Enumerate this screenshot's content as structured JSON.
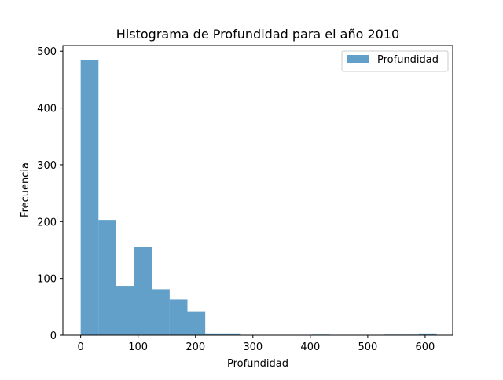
{
  "chart_data": {
    "type": "bar",
    "title": "Histograma de Profundidad para el año 2010",
    "xlabel": "Profundidad",
    "ylabel": "Frecuencia",
    "xlim": [
      -31,
      648
    ],
    "ylim": [
      0,
      510
    ],
    "x_ticks": [
      0,
      100,
      200,
      300,
      400,
      500,
      600
    ],
    "y_ticks": [
      0,
      100,
      200,
      300,
      400,
      500
    ],
    "legend": {
      "position": "top-right",
      "label": "Profundidad"
    },
    "series": [
      {
        "name": "Profundidad",
        "color": "#1f77b4",
        "opacity": 0.7,
        "bins": [
          {
            "x0": 0,
            "x1": 31,
            "count": 484
          },
          {
            "x0": 31,
            "x1": 62,
            "count": 203
          },
          {
            "x0": 62,
            "x1": 93,
            "count": 87
          },
          {
            "x0": 93,
            "x1": 124,
            "count": 155
          },
          {
            "x0": 124,
            "x1": 155,
            "count": 81
          },
          {
            "x0": 155,
            "x1": 186,
            "count": 63
          },
          {
            "x0": 186,
            "x1": 217,
            "count": 42
          },
          {
            "x0": 217,
            "x1": 248,
            "count": 3
          },
          {
            "x0": 248,
            "x1": 279,
            "count": 3
          },
          {
            "x0": 279,
            "x1": 310,
            "count": 0
          },
          {
            "x0": 310,
            "x1": 341,
            "count": 0
          },
          {
            "x0": 341,
            "x1": 372,
            "count": 0
          },
          {
            "x0": 372,
            "x1": 403,
            "count": 0
          },
          {
            "x0": 403,
            "x1": 434,
            "count": 1
          },
          {
            "x0": 434,
            "x1": 465,
            "count": 0
          },
          {
            "x0": 465,
            "x1": 496,
            "count": 0
          },
          {
            "x0": 496,
            "x1": 527,
            "count": 0
          },
          {
            "x0": 527,
            "x1": 558,
            "count": 1
          },
          {
            "x0": 558,
            "x1": 589,
            "count": 1
          },
          {
            "x0": 589,
            "x1": 620,
            "count": 3
          }
        ]
      }
    ]
  }
}
